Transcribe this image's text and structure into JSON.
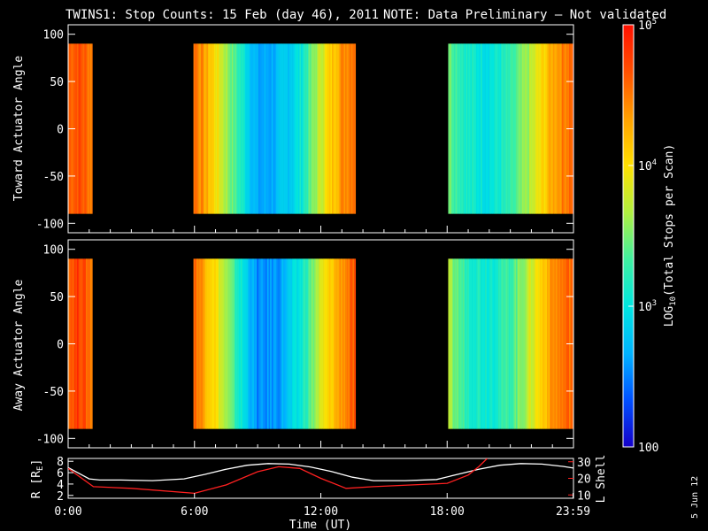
{
  "title": {
    "main": "TWINS1: Stop Counts: 15 Feb (day  46), 2011",
    "note": "NOTE: Data Preliminary – Not validated",
    "note_color": "#ff2020"
  },
  "footer_date": "5 Jun 12",
  "colorbar": {
    "label": "LOG10(Total Stops per Scan)",
    "label_parts": {
      "a": "LOG",
      "sub": "10",
      "b": "(Total Stops per Scan)"
    },
    "ticks": [
      {
        "value": 100,
        "label": "100"
      },
      {
        "value": 1000,
        "label": "10",
        "sup": "3"
      },
      {
        "value": 10000,
        "label": "10",
        "sup": "4"
      },
      {
        "value": 100000,
        "label": "10",
        "sup": "5"
      }
    ],
    "range": [
      100,
      100000
    ],
    "scale": "log",
    "colors": [
      "#1400c8",
      "#0050ff",
      "#00b4ff",
      "#00e6e0",
      "#40f0a0",
      "#b0f040",
      "#ffe000",
      "#ffa000",
      "#ff5000",
      "#ff1000"
    ]
  },
  "chart_data": [
    {
      "type": "heatmap",
      "id": "toward",
      "ylabel": "Toward Actuator Angle",
      "xlim": [
        0,
        24
      ],
      "ylim": [
        -110,
        110
      ],
      "yticks": [
        100,
        50,
        0,
        -50,
        -100
      ],
      "angle_range": [
        -90,
        90
      ],
      "data_intervals_hours": [
        [
          0.0,
          1.15
        ],
        [
          5.95,
          13.65
        ],
        [
          18.05,
          23.98
        ]
      ],
      "approx_log10_counts_by_hour": [
        [
          0.0,
          4.6
        ],
        [
          0.5,
          4.7
        ],
        [
          1.1,
          4.5
        ],
        [
          6.0,
          4.6
        ],
        [
          7.0,
          4.0
        ],
        [
          8.0,
          3.3
        ],
        [
          9.0,
          2.6
        ],
        [
          10.0,
          2.7
        ],
        [
          11.0,
          3.0
        ],
        [
          12.0,
          3.8
        ],
        [
          13.0,
          4.4
        ],
        [
          13.6,
          4.6
        ],
        [
          18.1,
          3.5
        ],
        [
          19.0,
          3.1
        ],
        [
          20.0,
          3.0
        ],
        [
          21.0,
          3.2
        ],
        [
          22.0,
          3.7
        ],
        [
          23.0,
          4.3
        ],
        [
          23.9,
          4.6
        ]
      ]
    },
    {
      "type": "heatmap",
      "id": "away",
      "ylabel": "Away Actuator Angle",
      "xlim": [
        0,
        24
      ],
      "ylim": [
        -110,
        110
      ],
      "yticks": [
        100,
        50,
        0,
        -50,
        -100
      ],
      "angle_range": [
        -90,
        90
      ],
      "data_intervals_hours": [
        [
          0.0,
          1.15
        ],
        [
          5.95,
          13.65
        ],
        [
          18.05,
          23.98
        ]
      ],
      "approx_log10_counts_by_hour": [
        [
          0.0,
          4.6
        ],
        [
          0.5,
          4.8
        ],
        [
          1.1,
          4.5
        ],
        [
          6.0,
          4.6
        ],
        [
          7.0,
          4.0
        ],
        [
          8.0,
          3.2
        ],
        [
          9.0,
          2.5
        ],
        [
          10.0,
          2.6
        ],
        [
          11.0,
          3.0
        ],
        [
          12.0,
          3.8
        ],
        [
          13.0,
          4.4
        ],
        [
          13.6,
          4.6
        ],
        [
          18.1,
          3.6
        ],
        [
          19.0,
          3.2
        ],
        [
          20.0,
          3.1
        ],
        [
          21.0,
          3.3
        ],
        [
          22.0,
          3.8
        ],
        [
          23.0,
          4.4
        ],
        [
          23.9,
          4.6
        ]
      ]
    },
    {
      "type": "line",
      "id": "orbit",
      "xlabel": "Time (UT)",
      "xticks": [
        {
          "value": 0,
          "label": "0:00"
        },
        {
          "value": 6,
          "label": "6:00"
        },
        {
          "value": 12,
          "label": "12:00"
        },
        {
          "value": 18,
          "label": "18:00"
        },
        {
          "value": 23.98,
          "label": "23:59"
        }
      ],
      "xlim": [
        0,
        24
      ],
      "left_axis": {
        "label": "R [RE]",
        "label_parts": {
          "a": "R [R",
          "sub": "E",
          "b": "]"
        },
        "ylim": [
          1.5,
          8.5
        ],
        "ticks": [
          2,
          4,
          6,
          8
        ]
      },
      "right_axis": {
        "label": "L Shell",
        "ylim": [
          8,
          32
        ],
        "ticks": [
          10,
          20,
          30
        ],
        "color": "#ff2020"
      },
      "series": [
        {
          "axis": "left",
          "color": "#ffffff",
          "x": [
            0.0,
            0.5,
            1.0,
            1.5,
            2.5,
            4.0,
            5.5,
            6.5,
            7.5,
            8.5,
            9.5,
            10.5,
            11.5,
            12.5,
            13.5,
            14.5,
            16.0,
            17.5,
            18.5,
            19.5,
            20.5,
            21.5,
            22.5,
            23.5,
            24.0
          ],
          "y": [
            6.9,
            5.9,
            4.9,
            4.7,
            4.7,
            4.6,
            4.9,
            5.7,
            6.6,
            7.3,
            7.6,
            7.5,
            7.0,
            6.2,
            5.2,
            4.6,
            4.6,
            4.8,
            5.7,
            6.6,
            7.3,
            7.6,
            7.5,
            7.1,
            6.8
          ]
        },
        {
          "axis": "right",
          "color": "#ff2020",
          "x": [
            0.0,
            1.2,
            3.0,
            6.0,
            7.5,
            9.0,
            10.0,
            11.0,
            12.0,
            13.2,
            14.5,
            18.0,
            19.0,
            19.5,
            19.9
          ],
          "y": [
            26,
            15,
            14,
            11,
            16,
            24,
            27,
            26,
            20,
            14,
            15,
            17,
            22,
            27,
            32
          ]
        }
      ]
    }
  ]
}
